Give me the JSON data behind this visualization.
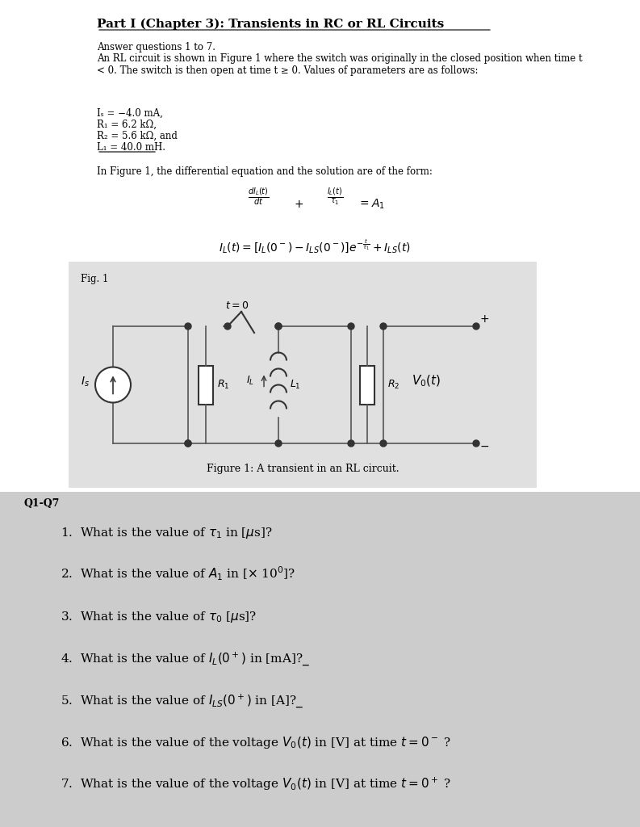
{
  "title": "Part I (Chapter 3): Transients in RC or RL Circuits",
  "bg_color": "#ffffff",
  "fig_bg_color": "#e8e8e8",
  "q_bg_color": "#d8d8d8",
  "intro_text": "Answer questions 1 to 7.",
  "description": "An RL circuit is shown in Figure 1 where the switch was originally in the closed position when time t\n< 0. The switch is then open at time t ≥ 0. Values of parameters are as follows:",
  "params": [
    "Iₛ = −4.0 mA,",
    "R₁ = 6.2 kΩ,",
    "R₂ = 5.6 kΩ, and",
    "L₁ = 40.0 mH."
  ],
  "form_intro": "In Figure 1, the differential equation and the solution are of the form:",
  "eq1_num": "dI_L(t)/dt",
  "eq1_den": "τ₁",
  "fig_caption": "Figure 1: A transient in an RL circuit.",
  "fig_label": "Fig. 1",
  "q_label": "Q1-Q7",
  "questions": [
    "1.  What is the value of τ₁ in [μs]?",
    "2.  What is the value of A₁ in [× 10⁰]?",
    "3.  What is the value of τ₀ [μs]?",
    "4.  What is the value of Iₗ(0⁺) in [mA]?_",
    "5.  What is the value of Iₗₛ(0⁺) in [A]?_",
    "6.  What is the value of the voltage V₀(t) in [V] at time t = 0⁻ ?",
    "7.  What is the value of the voltage V₀(t) in [V] at time t = 0⁺ ?"
  ]
}
